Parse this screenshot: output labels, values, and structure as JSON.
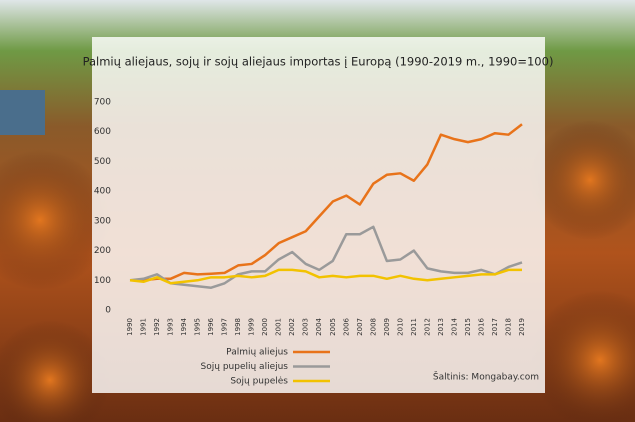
{
  "chart_data": {
    "type": "line",
    "title": "Palmių aliejaus, sojų ir sojų aliejaus importas į Europą (1990-2019 m., 1990=100)",
    "source": "Šaltinis: Mongabay.com",
    "categories": [
      "1990",
      "1991",
      "1992",
      "1993",
      "1994",
      "1995",
      "1996",
      "1997",
      "1998",
      "1999",
      "2000",
      "2001",
      "2002",
      "2003",
      "2004",
      "2005",
      "2006",
      "2007",
      "2008",
      "2009",
      "2010",
      "2011",
      "2012",
      "2013",
      "2014",
      "2015",
      "2016",
      "2017",
      "2018",
      "2019"
    ],
    "series": [
      {
        "name": "Palmių aliejus",
        "color": "#e8731a",
        "values": [
          100,
          100,
          105,
          105,
          125,
          120,
          122,
          125,
          150,
          155,
          185,
          225,
          245,
          265,
          315,
          365,
          385,
          355,
          425,
          455,
          460,
          435,
          490,
          590,
          575,
          565,
          575,
          595,
          590,
          625
        ]
      },
      {
        "name": "Sojų pupelių aliejus",
        "color": "#9a9a9a",
        "values": [
          100,
          105,
          120,
          90,
          85,
          80,
          75,
          90,
          120,
          130,
          130,
          170,
          195,
          155,
          135,
          165,
          255,
          255,
          280,
          165,
          170,
          200,
          140,
          130,
          125,
          125,
          135,
          120,
          145,
          160
        ]
      },
      {
        "name": "Sojų pupelės",
        "color": "#f2c200",
        "values": [
          100,
          95,
          110,
          90,
          95,
          100,
          110,
          110,
          115,
          110,
          115,
          135,
          135,
          130,
          110,
          115,
          110,
          115,
          115,
          105,
          115,
          105,
          100,
          105,
          110,
          115,
          120,
          120,
          135,
          135
        ]
      }
    ],
    "ylim": [
      0,
      700
    ],
    "yticks": [
      0,
      100,
      200,
      300,
      400,
      500,
      600,
      700
    ],
    "grid": false
  }
}
